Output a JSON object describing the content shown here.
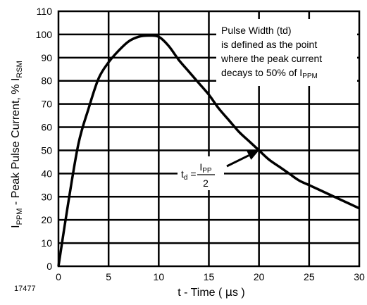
{
  "figure_id": "17477",
  "chart_data": {
    "type": "line",
    "xlabel": {
      "main": "t -  Time ( ",
      "mu": "µ",
      "unit": "s )"
    },
    "ylabel": {
      "prefix": "I",
      "sub1": "PPM",
      "mid": " -  Peak Pulse Current, % I",
      "sub2": "RSM"
    },
    "xlim": [
      0,
      30
    ],
    "ylim": [
      0,
      110
    ],
    "xticks": [
      0,
      5,
      10,
      15,
      20,
      25,
      30
    ],
    "yticks": [
      0,
      10,
      20,
      30,
      40,
      50,
      60,
      70,
      80,
      90,
      100,
      110
    ],
    "grid": true,
    "series": [
      {
        "x": [
          0,
          1,
          2,
          3,
          4,
          5,
          6,
          7,
          8,
          9,
          10,
          11,
          12,
          13,
          14,
          15,
          16,
          17,
          18,
          19,
          20,
          21,
          22,
          23,
          24,
          25,
          26,
          27,
          28,
          29,
          30
        ],
        "y": [
          0,
          28,
          53,
          68,
          81,
          88,
          93,
          97,
          99,
          99.5,
          99,
          95,
          89,
          84,
          79,
          74,
          68,
          63,
          58,
          54,
          50,
          46,
          43,
          40,
          37,
          35,
          33,
          31,
          29,
          27,
          25
        ]
      }
    ],
    "annotations": {
      "note_lines": [
        "Pulse Width (td)",
        "is defined as the point",
        "where the peak current"
      ],
      "note_last": {
        "text": "decays to 50% of I",
        "sub": "PPM"
      },
      "td_label": {
        "t": "t",
        "t_sub": "d",
        "eq": " = ",
        "num": "I",
        "num_sub": "PP",
        "den": "2"
      },
      "arrow_target": [
        20,
        50
      ]
    }
  }
}
